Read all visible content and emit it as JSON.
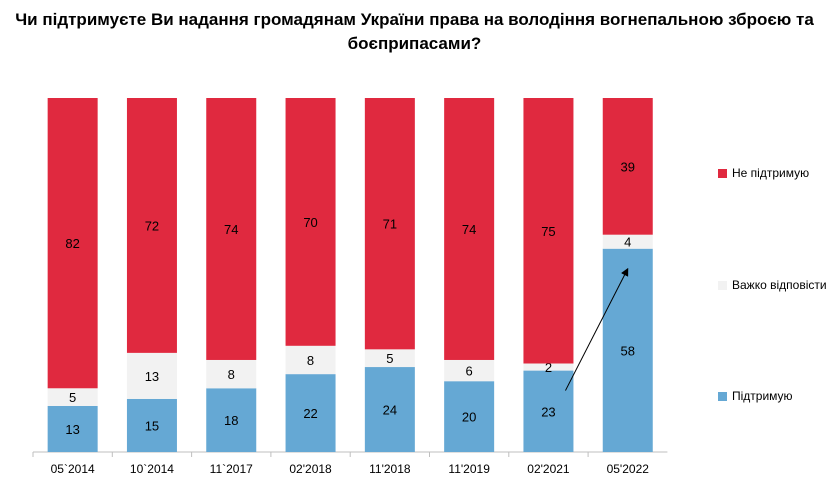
{
  "chart_data": {
    "type": "bar",
    "stacked": true,
    "title": "Чи підтримуєте Ви надання громадянам України права на володіння вогнепальною зброєю та боєприпасами?",
    "categories": [
      "05`2014",
      "10`2014",
      "11`2017",
      "02'2018",
      "11'2018",
      "11'2019",
      "02'2021",
      "05'2022"
    ],
    "series": [
      {
        "name": "Підтримую",
        "color": "#65a8d4",
        "values": [
          13,
          15,
          18,
          22,
          24,
          20,
          23,
          58
        ]
      },
      {
        "name": "Важко відповісти",
        "color": "#f2f2f2",
        "values": [
          5,
          13,
          8,
          8,
          5,
          6,
          2,
          4
        ]
      },
      {
        "name": "Не підтримую",
        "color": "#e0293f",
        "values": [
          82,
          72,
          74,
          70,
          71,
          74,
          75,
          39
        ]
      }
    ],
    "legend": [
      "Не підтримую",
      "Важко відповісти",
      "Підтримую"
    ],
    "legend_position": "right",
    "ylim": [
      0,
      100
    ],
    "grid": false,
    "annotations": [
      {
        "type": "arrow",
        "from": "02'2021",
        "to": "05'2022",
        "series": "Підтримую"
      }
    ]
  }
}
